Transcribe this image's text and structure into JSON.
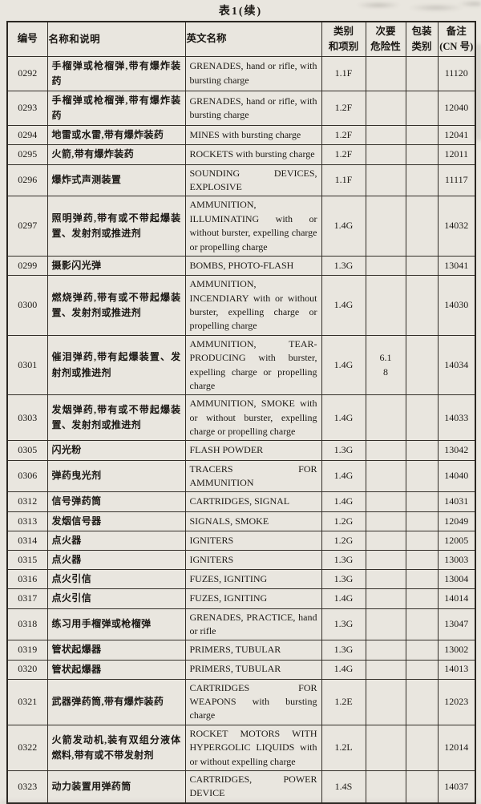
{
  "page": {
    "title": "表1(续)"
  },
  "table": {
    "columns": [
      {
        "key": "code",
        "label": "编号"
      },
      {
        "key": "name",
        "label": "名称和说明"
      },
      {
        "key": "english",
        "label": "英文名称"
      },
      {
        "key": "classDivision",
        "label": "类别\n和项别"
      },
      {
        "key": "subsidiaryRisk",
        "label": "次要\n危险性"
      },
      {
        "key": "packingGroup",
        "label": "包装\n类别"
      },
      {
        "key": "cn",
        "label": "备注\n(CN 号)"
      }
    ],
    "rows": [
      {
        "code": "0292",
        "name": "手榴弹或枪榴弹,带有爆炸装药",
        "english": "GRENADES, hand or rifle, with bursting charge",
        "classDivision": "1.1F",
        "subsidiaryRisk": "",
        "packingGroup": "",
        "cn": "11120"
      },
      {
        "code": "0293",
        "name": "手榴弹或枪榴弹,带有爆炸装药",
        "english": "GRENADES, hand or rifle, with bursting charge",
        "classDivision": "1.2F",
        "subsidiaryRisk": "",
        "packingGroup": "",
        "cn": "12040"
      },
      {
        "code": "0294",
        "name": "地雷或水雷,带有爆炸装药",
        "english": "MINES with bursting charge",
        "classDivision": "1.2F",
        "subsidiaryRisk": "",
        "packingGroup": "",
        "cn": "12041"
      },
      {
        "code": "0295",
        "name": "火箭,带有爆炸装药",
        "english": "ROCKETS with bursting charge",
        "classDivision": "1.2F",
        "subsidiaryRisk": "",
        "packingGroup": "",
        "cn": "12011"
      },
      {
        "code": "0296",
        "name": "爆炸式声测装置",
        "english": "SOUNDING DEVICES, EXPLOSIVE",
        "classDivision": "1.1F",
        "subsidiaryRisk": "",
        "packingGroup": "",
        "cn": "11117"
      },
      {
        "code": "0297",
        "name": "照明弹药,带有或不带起爆装置、发射剂或推进剂",
        "english": "AMMUNITION, ILLUMINATING with or without burster, expelling charge or propelling charge",
        "classDivision": "1.4G",
        "subsidiaryRisk": "",
        "packingGroup": "",
        "cn": "14032"
      },
      {
        "code": "0299",
        "name": "摄影闪光弹",
        "english": "BOMBS, PHOTO-FLASH",
        "classDivision": "1.3G",
        "subsidiaryRisk": "",
        "packingGroup": "",
        "cn": "13041"
      },
      {
        "code": "0300",
        "name": "燃烧弹药,带有或不带起爆装置、发射剂或推进剂",
        "english": "AMMUNITION, INCENDIARY with or without burster, expelling charge or propelling charge",
        "classDivision": "1.4G",
        "subsidiaryRisk": "",
        "packingGroup": "",
        "cn": "14030"
      },
      {
        "code": "0301",
        "name": "催泪弹药,带有起爆装置、发射剂或推进剂",
        "english": "AMMUNITION, TEAR-PRODUCING with burster, expelling charge or propelling charge",
        "classDivision": "1.4G",
        "subsidiaryRisk": "6.1\n8",
        "packingGroup": "",
        "cn": "14034"
      },
      {
        "code": "0303",
        "name": "发烟弹药,带有或不带起爆装置、发射剂或推进剂",
        "english": "AMMUNITION, SMOKE with or without burster, expelling charge or propelling charge",
        "classDivision": "1.4G",
        "subsidiaryRisk": "",
        "packingGroup": "",
        "cn": "14033"
      },
      {
        "code": "0305",
        "name": "闪光粉",
        "english": "FLASH POWDER",
        "classDivision": "1.3G",
        "subsidiaryRisk": "",
        "packingGroup": "",
        "cn": "13042"
      },
      {
        "code": "0306",
        "name": "弹药曳光剂",
        "english": "TRACERS FOR AMMUNITION",
        "classDivision": "1.4G",
        "subsidiaryRisk": "",
        "packingGroup": "",
        "cn": "14040"
      },
      {
        "code": "0312",
        "name": "信号弹药筒",
        "english": "CARTRIDGES, SIGNAL",
        "classDivision": "1.4G",
        "subsidiaryRisk": "",
        "packingGroup": "",
        "cn": "14031"
      },
      {
        "code": "0313",
        "name": "发烟信号器",
        "english": "SIGNALS, SMOKE",
        "classDivision": "1.2G",
        "subsidiaryRisk": "",
        "packingGroup": "",
        "cn": "12049"
      },
      {
        "code": "0314",
        "name": "点火器",
        "english": "IGNITERS",
        "classDivision": "1.2G",
        "subsidiaryRisk": "",
        "packingGroup": "",
        "cn": "12005"
      },
      {
        "code": "0315",
        "name": "点火器",
        "english": "IGNITERS",
        "classDivision": "1.3G",
        "subsidiaryRisk": "",
        "packingGroup": "",
        "cn": "13003"
      },
      {
        "code": "0316",
        "name": "点火引信",
        "english": "FUZES, IGNITING",
        "classDivision": "1.3G",
        "subsidiaryRisk": "",
        "packingGroup": "",
        "cn": "13004"
      },
      {
        "code": "0317",
        "name": "点火引信",
        "english": "FUZES, IGNITING",
        "classDivision": "1.4G",
        "subsidiaryRisk": "",
        "packingGroup": "",
        "cn": "14014"
      },
      {
        "code": "0318",
        "name": "练习用手榴弹或枪榴弹",
        "english": "GRENADES, PRACTICE, hand or rifle",
        "classDivision": "1.3G",
        "subsidiaryRisk": "",
        "packingGroup": "",
        "cn": "13047"
      },
      {
        "code": "0319",
        "name": "管状起爆器",
        "english": "PRIMERS, TUBULAR",
        "classDivision": "1.3G",
        "subsidiaryRisk": "",
        "packingGroup": "",
        "cn": "13002"
      },
      {
        "code": "0320",
        "name": "管状起爆器",
        "english": "PRIMERS, TUBULAR",
        "classDivision": "1.4G",
        "subsidiaryRisk": "",
        "packingGroup": "",
        "cn": "14013"
      },
      {
        "code": "0321",
        "name": "武器弹药筒,带有爆炸装药",
        "english": "CARTRIDGES FOR WEAPONS with bursting charge",
        "classDivision": "1.2E",
        "subsidiaryRisk": "",
        "packingGroup": "",
        "cn": "12023"
      },
      {
        "code": "0322",
        "name": "火箭发动机,装有双组分液体燃料,带有或不带发射剂",
        "english": "ROCKET MOTORS WITH HYPERGOLIC LIQUIDS with or without expelling charge",
        "classDivision": "1.2L",
        "subsidiaryRisk": "",
        "packingGroup": "",
        "cn": "12014"
      },
      {
        "code": "0323",
        "name": "动力装置用弹药筒",
        "english": "CARTRIDGES, POWER DEVICE",
        "classDivision": "1.4S",
        "subsidiaryRisk": "",
        "packingGroup": "",
        "cn": "14037"
      }
    ]
  }
}
